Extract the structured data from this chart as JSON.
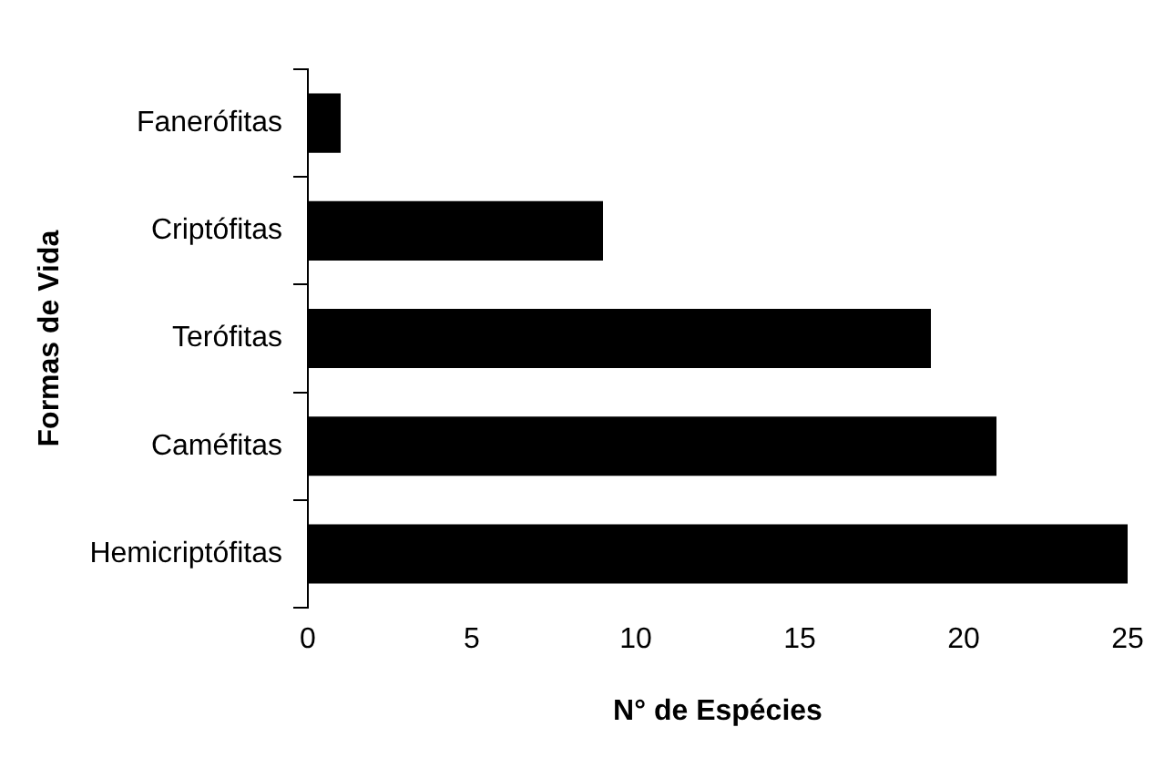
{
  "chart_data": {
    "type": "bar",
    "orientation": "horizontal",
    "xlabel": "N° de Espécies",
    "ylabel": "Formas de Vida",
    "categories": [
      "Fanerófitas",
      "Criptófitas",
      "Terófitas",
      "Caméfitas",
      "Hemicriptófitas"
    ],
    "values": [
      1,
      9,
      19,
      21,
      25
    ],
    "color": "#000000",
    "xlim": [
      0,
      25
    ],
    "xticks": [
      0,
      5,
      10,
      15,
      20,
      25
    ],
    "grid": false,
    "legend": false
  }
}
